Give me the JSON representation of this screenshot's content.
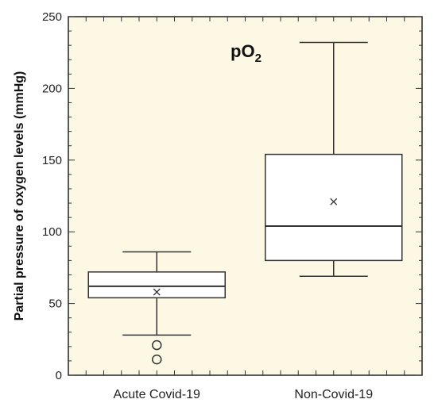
{
  "chart_data": {
    "type": "box",
    "title": "pO",
    "title_subscript": "2",
    "ylabel": "Partial pressure of oxygen levels (mmHg)",
    "xlabel": "",
    "ylim": [
      0,
      250
    ],
    "yticks": [
      0,
      50,
      100,
      150,
      200,
      250
    ],
    "categories": [
      "Acute Covid-19",
      "Non-Covid-19"
    ],
    "boxes": [
      {
        "category": "Acute Covid-19",
        "whisker_low": 28,
        "q1": 54,
        "median": 62,
        "q3": 72,
        "whisker_high": 86,
        "mean": 58,
        "outliers": [
          21,
          11
        ]
      },
      {
        "category": "Non-Covid-19",
        "whisker_low": 69,
        "q1": 80,
        "median": 104,
        "q3": 154,
        "whisker_high": 232,
        "mean": 121,
        "outliers": []
      }
    ],
    "grid": false,
    "colors": {
      "plot_background": "#fdf8e4",
      "box_fill": "#ffffff",
      "stroke": "#333333"
    }
  }
}
